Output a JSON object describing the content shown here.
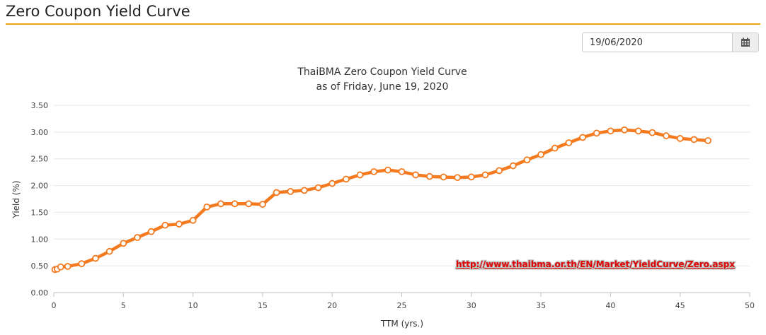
{
  "page": {
    "title": "Zero Coupon Yield Curve"
  },
  "date_picker": {
    "value": "19/06/2020"
  },
  "icons": {
    "calendar": "calendar-icon"
  },
  "colors": {
    "accent_rule": "#e8a317",
    "series": "#f47a20",
    "url": "#e00000"
  },
  "chart_data": {
    "type": "line",
    "title": "ThaiBMA Zero Coupon Yield Curve",
    "subtitle": "as of Friday, June 19, 2020",
    "xlabel": "TTM (yrs.)",
    "ylabel": "Yield (%)",
    "xlim": [
      0,
      50
    ],
    "ylim": [
      0,
      3.5
    ],
    "xticks": [
      "0",
      "5",
      "10",
      "15",
      "20",
      "25",
      "30",
      "35",
      "40",
      "45",
      "50"
    ],
    "yticks": [
      "0.00",
      "0.50",
      "1.00",
      "1.50",
      "2.00",
      "2.50",
      "3.00",
      "3.50"
    ],
    "grid": "horizontal",
    "annotation": "http://www.thaibma.or.th/EN/Market/YieldCurve/Zero.aspx",
    "series": [
      {
        "name": "Zero Coupon Yield",
        "x": [
          0.08,
          0.25,
          0.5,
          1,
          2,
          3,
          4,
          5,
          6,
          7,
          8,
          9,
          10,
          11,
          12,
          13,
          14,
          15,
          16,
          17,
          18,
          19,
          20,
          21,
          22,
          23,
          24,
          25,
          26,
          27,
          28,
          29,
          30,
          31,
          32,
          33,
          34,
          35,
          36,
          37,
          38,
          39,
          40,
          41,
          42,
          43,
          44,
          45,
          46,
          47
        ],
        "values": [
          0.43,
          0.44,
          0.48,
          0.49,
          0.54,
          0.64,
          0.77,
          0.92,
          1.03,
          1.14,
          1.26,
          1.28,
          1.35,
          1.6,
          1.66,
          1.66,
          1.66,
          1.65,
          1.87,
          1.89,
          1.91,
          1.96,
          2.04,
          2.12,
          2.2,
          2.26,
          2.29,
          2.26,
          2.2,
          2.17,
          2.16,
          2.15,
          2.16,
          2.2,
          2.28,
          2.37,
          2.48,
          2.58,
          2.7,
          2.8,
          2.9,
          2.98,
          3.02,
          3.04,
          3.02,
          2.99,
          2.93,
          2.88,
          2.86,
          2.84
        ]
      }
    ]
  }
}
